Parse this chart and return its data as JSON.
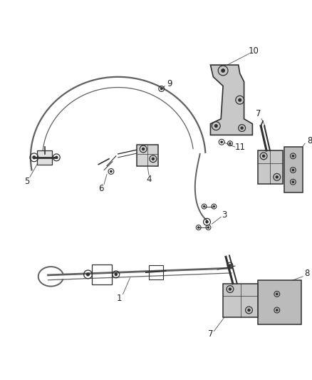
{
  "bg_color": "#ffffff",
  "lc": "#606060",
  "dc": "#303030",
  "gray1": "#c8c8c8",
  "gray2": "#a8a8a8",
  "fig_width": 4.38,
  "fig_height": 5.33,
  "dpi": 100
}
